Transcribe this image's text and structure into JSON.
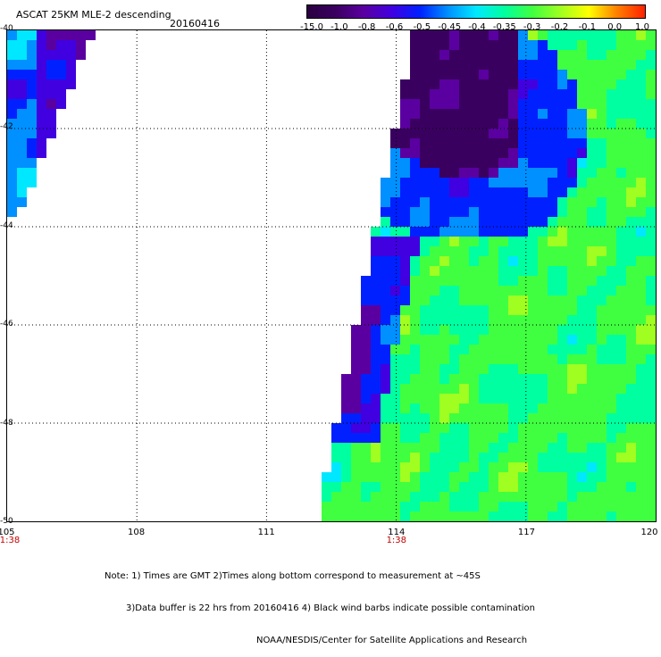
{
  "header": {
    "title": "ASCAT 25KM MLE-2 descending",
    "date": "20160416"
  },
  "colorbar": {
    "labels": [
      "-15.0",
      "-1.0",
      "-0.8",
      "-0.6",
      "-0.5",
      "-0.45",
      "-0.4",
      "-0.35",
      "-0.3",
      "-0.2",
      "-0.1",
      "0.0",
      "1.0"
    ],
    "colors": [
      "#2a0040",
      "#3a0060",
      "#5a00a0",
      "#4000e0",
      "#0020ff",
      "#0090ff",
      "#00e8ff",
      "#00ffa0",
      "#40ff40",
      "#a0ff20",
      "#ffff00",
      "#ff8000",
      "#ff2000"
    ]
  },
  "axes": {
    "lat_labels": [
      "-40",
      "-42",
      "-44",
      "-46",
      "-48",
      "-50"
    ],
    "lon_labels": [
      "105",
      "108",
      "111",
      "114",
      "117",
      "120"
    ],
    "lon_range": [
      105,
      120
    ],
    "lat_range": [
      -40,
      -50
    ],
    "time_labels": [
      {
        "lon": 105,
        "text": "1:38"
      },
      {
        "lon": 114,
        "text": "1:38"
      }
    ]
  },
  "notes": [
    "Note: 1) Times are GMT 2)Times along bottom correspond to measurement at ~45S",
    "3)Data buffer is 22 hrs from 20160416 4) Black wind barbs indicate possible contamination",
    "NOAA/NESDIS/Center for Satellite Applications and Research"
  ],
  "map_data": {
    "swaths": [
      {
        "name": "west-swath",
        "lon_west": 105.0,
        "lon_east_top": 106.7,
        "lat_top": -40.0,
        "lat_bottom": -43.8
      },
      {
        "name": "east-swath",
        "lon_west_top": 114.3,
        "lon_west_bottom": 112.0,
        "lat_top": -40.0,
        "lat_bottom": -50.0
      }
    ]
  }
}
